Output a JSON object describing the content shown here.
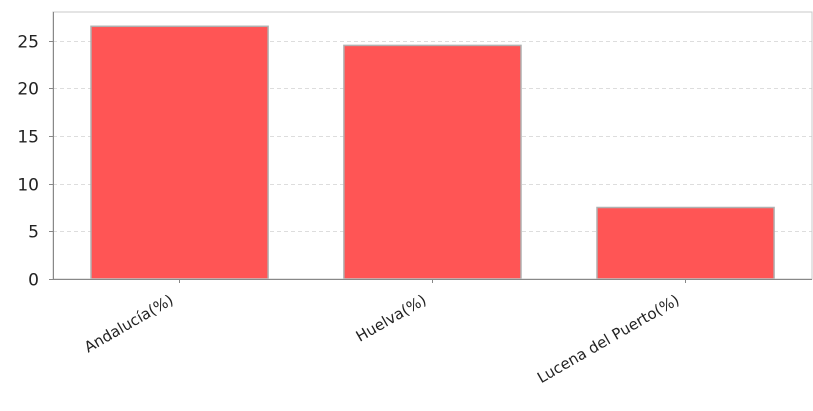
{
  "chart_data": {
    "type": "bar",
    "title": "",
    "xlabel": "",
    "ylabel": "",
    "categories": [
      "Andalucía(%)",
      "Huelva(%)",
      "Lucena del Puerto(%)"
    ],
    "values": [
      26.5,
      24.5,
      7.5
    ],
    "ylim": [
      0,
      28
    ],
    "yticks": [
      0,
      5,
      10,
      15,
      20,
      25
    ],
    "grid": true,
    "legend": "none",
    "colors": {
      "bar": "#ff5555",
      "bar_border": "#b0b0b0",
      "grid": "#dddddd",
      "axis": "#888888",
      "text": "#222222"
    }
  }
}
